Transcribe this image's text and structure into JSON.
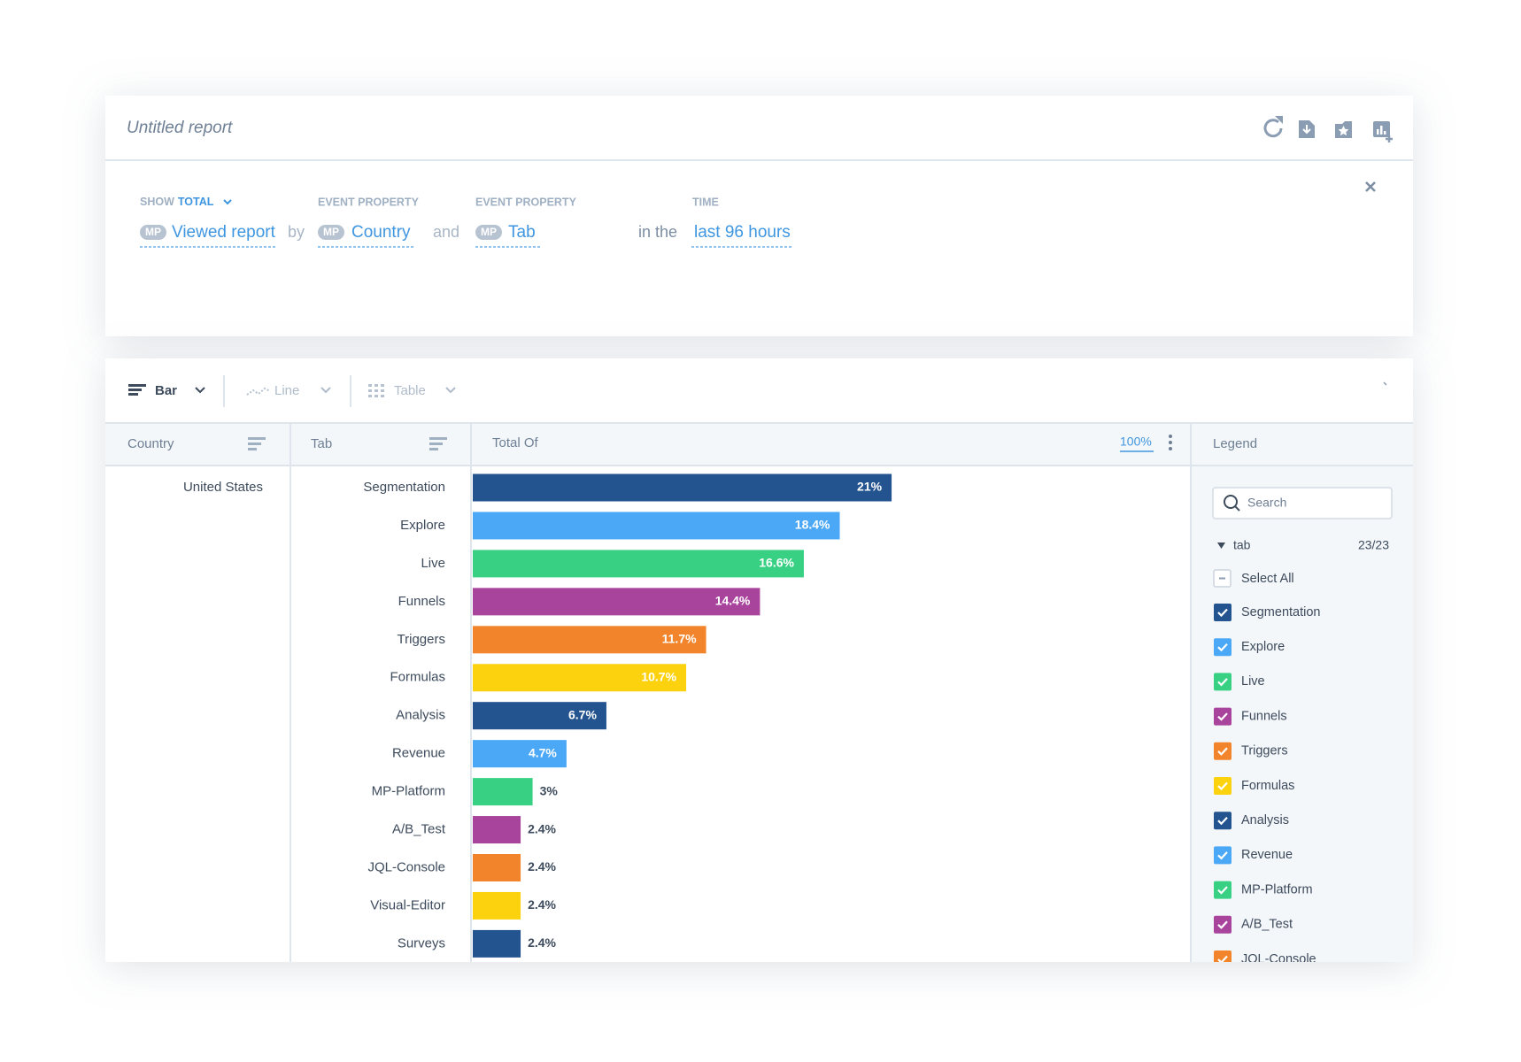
{
  "report": {
    "title": "Untitled report"
  },
  "query": {
    "show": "SHOW",
    "measure": "TOTAL",
    "event_badge": "MP",
    "event": "Viewed report",
    "by": "by",
    "prop1_header": "EVENT PROPERTY",
    "prop1_badge": "MP",
    "prop1": "Country",
    "and": "and",
    "prop2_header": "EVENT PROPERTY",
    "prop2_badge": "MP",
    "prop2": "Tab",
    "in_the": "in the",
    "time_header": "TIME",
    "time": "last 96 hours"
  },
  "views": [
    "Bar",
    "Line",
    "Table"
  ],
  "table": {
    "columns": [
      "Country",
      "Tab",
      "Total Of",
      "Legend"
    ],
    "scale_label": "100%",
    "row_group": "United States"
  },
  "chart_data": {
    "type": "bar",
    "categories": [
      "Segmentation",
      "Explore",
      "Live",
      "Funnels",
      "Triggers",
      "Formulas",
      "Analysis",
      "Revenue",
      "MP-Platform",
      "A/B_Test",
      "JQL-Console",
      "Visual-Editor",
      "Surveys"
    ],
    "values": [
      21,
      18.4,
      16.6,
      14.4,
      11.7,
      10.7,
      6.7,
      4.7,
      3,
      2.4,
      2.4,
      2.4,
      2.4
    ],
    "value_labels": [
      "21%",
      "18.4%",
      "16.6%",
      "14.4%",
      "11.7%",
      "10.7%",
      "6.7%",
      "4.7%",
      "3%",
      "2.4%",
      "2.4%",
      "2.4%",
      "2.4%"
    ],
    "colors": [
      "#23548f",
      "#4ba8f6",
      "#38d184",
      "#a8449c",
      "#f2852b",
      "#fcd20e",
      "#23548f",
      "#4ba8f6",
      "#38d184",
      "#a8449c",
      "#f2852b",
      "#fcd20e",
      "#23548f"
    ],
    "xlim": [
      0,
      36
    ]
  },
  "legend": {
    "search_placeholder": "Search",
    "group": "tab",
    "count": "23/23",
    "select_all": "Select All"
  }
}
